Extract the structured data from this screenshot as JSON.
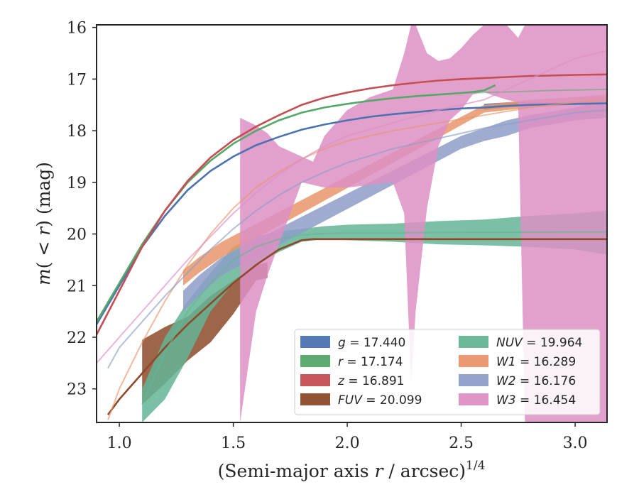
{
  "chart_data": {
    "type": "line",
    "xlabel": "(Semi-major axis r / arcsec)",
    "xlabel_parts": {
      "pre": "(Semi-major axis ",
      "var": "r",
      "post": " / arcsec)",
      "sup": "1/4"
    },
    "ylabel": "m(< r) (mag)",
    "ylabel_parts": {
      "pre": "m",
      "mid": "( < ",
      "var": "r",
      "post": ") (mag)"
    },
    "xlim": [
      0.9,
      3.14
    ],
    "ylim": [
      23.65,
      15.95
    ],
    "y_inverted": true,
    "xticks": [
      "1.0",
      "1.5",
      "2.0",
      "2.5",
      "3.0"
    ],
    "xtick_values": [
      1.0,
      1.5,
      2.0,
      2.5,
      3.0
    ],
    "yticks": [
      "16",
      "17",
      "18",
      "19",
      "20",
      "21",
      "22",
      "23"
    ],
    "ytick_values": [
      16,
      17,
      18,
      19,
      20,
      21,
      22,
      23
    ],
    "legend_position": "lower-right",
    "series": [
      {
        "name": "g = 17.440",
        "label_var": "g",
        "label_val": "17.440",
        "color": "#4c72b0",
        "data": [
          [
            0.9,
            21.75
          ],
          [
            1.0,
            21.0
          ],
          [
            1.1,
            20.25
          ],
          [
            1.2,
            19.65
          ],
          [
            1.3,
            19.15
          ],
          [
            1.4,
            18.78
          ],
          [
            1.5,
            18.5
          ],
          [
            1.6,
            18.28
          ],
          [
            1.7,
            18.12
          ],
          [
            1.8,
            17.98
          ],
          [
            1.9,
            17.88
          ],
          [
            2.0,
            17.8
          ],
          [
            2.1,
            17.73
          ],
          [
            2.2,
            17.68
          ],
          [
            2.3,
            17.64
          ],
          [
            2.4,
            17.6
          ],
          [
            2.5,
            17.57
          ],
          [
            2.6,
            17.55
          ],
          [
            2.7,
            17.52
          ],
          [
            2.8,
            17.5
          ],
          [
            2.9,
            17.49
          ],
          [
            3.0,
            17.48
          ],
          [
            3.14,
            17.47
          ]
        ],
        "band": [
          [
            2.6,
            17.48,
            17.6
          ],
          [
            2.7,
            17.45,
            17.55
          ],
          [
            2.8,
            17.45,
            17.52
          ],
          [
            2.9,
            17.45,
            17.5
          ],
          [
            3.0,
            17.44,
            17.5
          ],
          [
            3.14,
            17.44,
            17.5
          ]
        ]
      },
      {
        "name": "r = 17.174",
        "label_var": "r",
        "label_val": "17.174",
        "color": "#55a868",
        "data": [
          [
            0.9,
            21.7
          ],
          [
            1.0,
            20.95
          ],
          [
            1.1,
            20.2
          ],
          [
            1.2,
            19.55
          ],
          [
            1.3,
            19.0
          ],
          [
            1.4,
            18.58
          ],
          [
            1.5,
            18.25
          ],
          [
            1.6,
            18.0
          ],
          [
            1.7,
            17.8
          ],
          [
            1.8,
            17.65
          ],
          [
            1.9,
            17.55
          ],
          [
            2.0,
            17.48
          ],
          [
            2.1,
            17.42
          ],
          [
            2.2,
            17.37
          ],
          [
            2.3,
            17.33
          ],
          [
            2.4,
            17.3
          ],
          [
            2.5,
            17.27
          ],
          [
            2.55,
            17.25
          ],
          [
            2.6,
            17.22
          ],
          [
            2.65,
            17.12
          ]
        ],
        "band": [],
        "faint": [
          [
            2.5,
            17.27
          ],
          [
            2.7,
            17.25
          ],
          [
            2.9,
            17.22
          ],
          [
            3.14,
            17.2
          ]
        ]
      },
      {
        "name": "z = 16.891",
        "label_var": "z",
        "label_val": "16.891",
        "color": "#c44e52",
        "data": [
          [
            0.9,
            21.95
          ],
          [
            1.0,
            21.1
          ],
          [
            1.1,
            20.25
          ],
          [
            1.2,
            19.55
          ],
          [
            1.3,
            18.97
          ],
          [
            1.4,
            18.52
          ],
          [
            1.5,
            18.18
          ],
          [
            1.6,
            17.92
          ],
          [
            1.7,
            17.7
          ],
          [
            1.8,
            17.5
          ],
          [
            1.9,
            17.36
          ],
          [
            2.0,
            17.26
          ],
          [
            2.1,
            17.18
          ],
          [
            2.2,
            17.12
          ],
          [
            2.3,
            17.07
          ],
          [
            2.4,
            17.03
          ],
          [
            2.5,
            17.0
          ],
          [
            2.6,
            16.98
          ],
          [
            2.7,
            16.96
          ],
          [
            2.8,
            16.94
          ],
          [
            2.9,
            16.93
          ],
          [
            3.0,
            16.92
          ],
          [
            3.14,
            16.91
          ]
        ],
        "band": []
      },
      {
        "name": "FUV = 20.099",
        "label_var": "FUV",
        "label_val": "20.099",
        "color": "#8c4a2a",
        "data": [
          [
            0.95,
            23.5
          ],
          [
            1.0,
            23.2
          ],
          [
            1.1,
            22.7
          ],
          [
            1.2,
            22.2
          ],
          [
            1.3,
            21.75
          ],
          [
            1.4,
            21.35
          ],
          [
            1.5,
            20.95
          ],
          [
            1.6,
            20.6
          ],
          [
            1.7,
            20.3
          ],
          [
            1.8,
            20.12
          ],
          [
            1.85,
            20.1
          ],
          [
            2.0,
            20.1
          ],
          [
            2.5,
            20.1
          ],
          [
            3.0,
            20.1
          ],
          [
            3.14,
            20.1
          ]
        ],
        "band": [
          [
            1.1,
            22.05,
            23.3
          ],
          [
            1.2,
            21.8,
            22.9
          ],
          [
            1.3,
            21.6,
            22.45
          ],
          [
            1.4,
            21.2,
            22.1
          ],
          [
            1.5,
            20.9,
            21.55
          ],
          [
            1.6,
            20.6,
            20.9
          ],
          [
            1.65,
            20.55,
            20.85
          ]
        ]
      },
      {
        "name": "NUV = 19.964",
        "label_var": "NUV",
        "label_val": "19.964",
        "color": "#64b595",
        "data": [
          [
            1.1,
            23.3
          ],
          [
            1.2,
            22.3
          ],
          [
            1.3,
            21.5
          ],
          [
            1.4,
            20.95
          ],
          [
            1.5,
            20.5
          ],
          [
            1.6,
            20.25
          ],
          [
            1.7,
            20.1
          ],
          [
            1.8,
            20.02
          ],
          [
            1.9,
            19.99
          ],
          [
            2.0,
            19.98
          ],
          [
            2.5,
            19.97
          ],
          [
            3.0,
            19.96
          ],
          [
            3.14,
            19.96
          ]
        ],
        "band": [
          [
            1.1,
            23.0,
            23.65
          ],
          [
            1.2,
            22.0,
            23.2
          ],
          [
            1.3,
            21.3,
            22.4
          ],
          [
            1.4,
            20.75,
            21.5
          ],
          [
            1.5,
            20.25,
            20.95
          ],
          [
            1.6,
            20.05,
            20.6
          ],
          [
            1.7,
            19.95,
            20.35
          ],
          [
            1.8,
            19.9,
            20.15
          ],
          [
            1.9,
            19.85,
            20.1
          ],
          [
            2.0,
            19.82,
            20.12
          ],
          [
            2.2,
            19.8,
            20.15
          ],
          [
            2.4,
            19.75,
            20.2
          ],
          [
            2.6,
            19.72,
            20.22
          ],
          [
            2.8,
            19.65,
            20.25
          ],
          [
            3.0,
            19.6,
            20.3
          ],
          [
            3.14,
            19.55,
            20.4
          ]
        ]
      },
      {
        "name": "W1 = 16.289",
        "label_var": "W1",
        "label_val": "16.289",
        "color": "#e8956b",
        "data": [
          [
            0.95,
            23.6
          ],
          [
            1.0,
            23.0
          ],
          [
            1.1,
            22.1
          ],
          [
            1.2,
            21.3
          ],
          [
            1.3,
            20.6
          ],
          [
            1.4,
            20.0
          ],
          [
            1.5,
            19.5
          ],
          [
            1.6,
            19.1
          ],
          [
            1.7,
            18.8
          ],
          [
            1.8,
            18.55
          ],
          [
            1.9,
            18.35
          ],
          [
            2.0,
            18.2
          ],
          [
            2.2,
            18.0
          ],
          [
            2.4,
            17.85
          ],
          [
            2.6,
            17.7
          ],
          [
            2.8,
            17.55
          ],
          [
            3.0,
            17.45
          ],
          [
            3.14,
            17.4
          ]
        ],
        "band": [
          [
            1.28,
            20.7,
            21.0
          ],
          [
            1.35,
            20.45,
            20.75
          ],
          [
            1.45,
            20.15,
            20.45
          ],
          [
            2.6,
            17.5,
            17.65
          ],
          [
            2.8,
            17.4,
            17.55
          ],
          [
            3.0,
            17.35,
            17.5
          ],
          [
            3.14,
            17.3,
            17.45
          ]
        ]
      },
      {
        "name": "W2 = 16.176",
        "label_var": "W2",
        "label_val": "16.176",
        "color": "#8e9ec8",
        "data": [
          [
            0.95,
            22.6
          ],
          [
            1.0,
            22.2
          ],
          [
            1.1,
            21.7
          ],
          [
            1.2,
            21.2
          ],
          [
            1.3,
            20.75
          ],
          [
            1.4,
            20.3
          ],
          [
            1.5,
            19.9
          ],
          [
            1.6,
            19.55
          ],
          [
            1.7,
            19.25
          ],
          [
            1.8,
            19.0
          ],
          [
            1.9,
            18.8
          ],
          [
            2.0,
            18.62
          ],
          [
            2.2,
            18.35
          ],
          [
            2.4,
            18.15
          ],
          [
            2.6,
            17.95
          ],
          [
            2.8,
            17.8
          ],
          [
            3.0,
            17.65
          ],
          [
            3.14,
            17.6
          ]
        ],
        "band": [
          [
            1.28,
            21.1,
            21.5
          ],
          [
            1.35,
            20.8,
            21.2
          ],
          [
            1.45,
            20.45,
            20.8
          ],
          [
            2.5,
            18.1,
            18.35
          ],
          [
            2.6,
            17.95,
            18.2
          ],
          [
            2.7,
            17.8,
            18.1
          ],
          [
            2.8,
            17.7,
            17.95
          ],
          [
            3.0,
            17.55,
            17.8
          ],
          [
            3.14,
            17.4,
            17.75
          ]
        ]
      },
      {
        "name": "W3 = 16.454",
        "label_var": "W3",
        "label_val": "16.454",
        "color": "#dd8fc4",
        "data": [
          [
            0.9,
            22.5
          ],
          [
            1.0,
            22.0
          ],
          [
            1.1,
            21.5
          ],
          [
            1.2,
            21.0
          ],
          [
            1.3,
            20.5
          ],
          [
            1.4,
            20.05
          ],
          [
            1.5,
            19.6
          ],
          [
            1.6,
            19.2
          ],
          [
            1.7,
            18.85
          ],
          [
            1.8,
            18.55
          ],
          [
            1.9,
            18.3
          ],
          [
            2.0,
            18.1
          ],
          [
            2.2,
            17.85
          ],
          [
            2.4,
            17.6
          ],
          [
            2.6,
            17.4
          ],
          [
            2.8,
            17.0
          ],
          [
            3.0,
            16.6
          ],
          [
            3.14,
            16.45
          ]
        ],
        "band": [
          [
            1.53,
            17.75,
            23.65
          ],
          [
            1.6,
            17.9,
            21.5
          ],
          [
            1.65,
            18.05,
            20.8
          ],
          [
            1.7,
            18.3,
            20.2
          ],
          [
            1.8,
            18.5,
            19.0
          ],
          [
            1.85,
            18.6,
            19.05
          ],
          [
            1.9,
            18.1,
            19.1
          ],
          [
            2.0,
            17.6,
            19.1
          ],
          [
            2.1,
            17.35,
            19.05
          ],
          [
            2.2,
            17.2,
            19.0
          ],
          [
            2.25,
            16.5,
            19.6
          ],
          [
            2.28,
            15.95,
            22.9
          ],
          [
            2.3,
            15.95,
            21.5
          ],
          [
            2.35,
            16.5,
            19.5
          ],
          [
            2.4,
            16.65,
            18.3
          ],
          [
            2.45,
            16.6,
            17.8
          ],
          [
            2.5,
            16.4,
            17.6
          ],
          [
            2.55,
            16.15,
            17.3
          ],
          [
            2.6,
            15.95,
            17.25
          ],
          [
            2.63,
            15.95,
            17.3
          ],
          [
            2.7,
            15.95,
            17.4
          ],
          [
            2.75,
            16.2,
            17.45
          ],
          [
            2.78,
            15.95,
            23.65
          ],
          [
            2.85,
            15.95,
            23.65
          ],
          [
            2.9,
            15.95,
            23.65
          ],
          [
            3.0,
            15.95,
            23.65
          ],
          [
            3.14,
            15.95,
            23.65
          ]
        ]
      }
    ]
  }
}
